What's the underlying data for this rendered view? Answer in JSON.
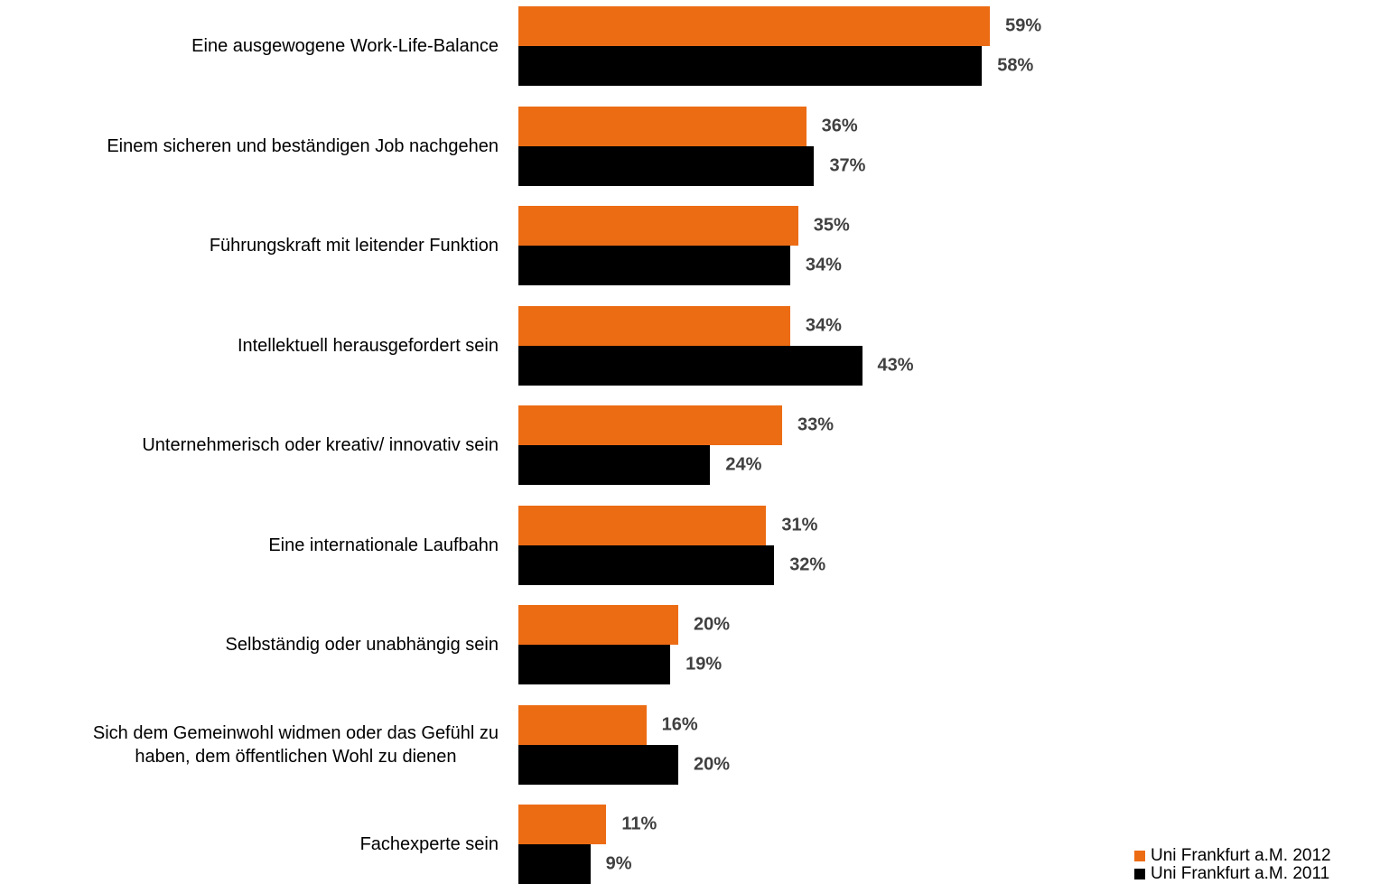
{
  "chart_data": {
    "type": "barh",
    "categories": [
      "Eine ausgewogene Work-Life-Balance",
      "Einem sicheren und beständigen Job nachgehen",
      "Führungskraft mit leitender Funktion",
      "Intellektuell herausgefordert sein",
      "Unternehmerisch oder kreativ/ innovativ sein",
      "Eine internationale Laufbahn",
      "Selbständig oder unabhängig sein",
      "Sich dem Gemeinwohl widmen oder das Gefühl zu\nhaben, dem öffentlichen Wohl zu dienen",
      "Fachexperte sein"
    ],
    "series": [
      {
        "name": "Uni Frankfurt a.M. 2012",
        "color": "#ec6c14",
        "values": [
          59,
          36,
          35,
          34,
          33,
          31,
          20,
          16,
          11
        ],
        "value_labels": [
          "59%",
          "36%",
          "35%",
          "34%",
          "33%",
          "31%",
          "20%",
          "16%",
          "11%"
        ]
      },
      {
        "name": "Uni Frankfurt a.M. 2011",
        "color": "#000000",
        "values": [
          58,
          37,
          34,
          43,
          24,
          32,
          19,
          20,
          9
        ],
        "value_labels": [
          "58%",
          "37%",
          "34%",
          "43%",
          "24%",
          "32%",
          "19%",
          "20%",
          "9%"
        ]
      }
    ],
    "legend": "bottom-right"
  }
}
